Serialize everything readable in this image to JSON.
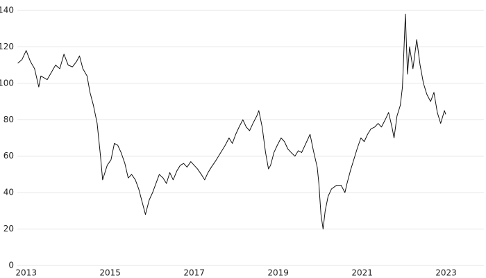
{
  "chart_data": {
    "type": "line",
    "x": [
      2012.8,
      2012.9,
      2013.0,
      2013.1,
      2013.2,
      2013.3,
      2013.35,
      2013.5,
      2013.6,
      2013.7,
      2013.8,
      2013.9,
      2014.0,
      2014.1,
      2014.2,
      2014.27,
      2014.35,
      2014.45,
      2014.52,
      2014.6,
      2014.69,
      2014.77,
      2014.82,
      2014.93,
      2015.02,
      2015.1,
      2015.18,
      2015.26,
      2015.35,
      2015.43,
      2015.51,
      2015.6,
      2015.68,
      2015.76,
      2015.84,
      2015.93,
      2016.01,
      2016.09,
      2016.17,
      2016.26,
      2016.34,
      2016.42,
      2016.5,
      2016.59,
      2016.67,
      2016.75,
      2016.83,
      2016.92,
      2017.0,
      2017.08,
      2017.17,
      2017.25,
      2017.33,
      2017.41,
      2017.5,
      2017.58,
      2017.66,
      2017.74,
      2017.83,
      2017.91,
      2017.99,
      2018.07,
      2018.16,
      2018.24,
      2018.32,
      2018.4,
      2018.49,
      2018.54,
      2018.62,
      2018.7,
      2018.77,
      2018.82,
      2018.9,
      2018.98,
      2019.07,
      2019.15,
      2019.23,
      2019.31,
      2019.4,
      2019.48,
      2019.56,
      2019.64,
      2019.76,
      2019.84,
      2019.93,
      2019.97,
      2019.99,
      2020.02,
      2020.07,
      2020.12,
      2020.19,
      2020.27,
      2020.39,
      2020.5,
      2020.59,
      2020.64,
      2020.72,
      2020.8,
      2020.88,
      2020.97,
      2021.05,
      2021.13,
      2021.21,
      2021.3,
      2021.38,
      2021.46,
      2021.55,
      2021.63,
      2021.71,
      2021.76,
      2021.83,
      2021.91,
      2021.96,
      2022.03,
      2022.08,
      2022.13,
      2022.21,
      2022.3,
      2022.38,
      2022.46,
      2022.54,
      2022.63,
      2022.71,
      2022.79,
      2022.87,
      2022.96,
      2022.99
    ],
    "series": [
      {
        "color": "#111111",
        "values": [
          111,
          113,
          118,
          112,
          108,
          98,
          104,
          102,
          106,
          110,
          108,
          116,
          110,
          109,
          112,
          115,
          108,
          104,
          95,
          88,
          78,
          60,
          47,
          55,
          58,
          67,
          66,
          62,
          56,
          48,
          50,
          47,
          42,
          35,
          28,
          36,
          40,
          45,
          50,
          48,
          45,
          51,
          47,
          52,
          55,
          56,
          54,
          57,
          55,
          53,
          50,
          47,
          51,
          54,
          57,
          60,
          63,
          66,
          70,
          67,
          72,
          76,
          80,
          76,
          74,
          78,
          82,
          85,
          76,
          62,
          53,
          55,
          62,
          66,
          70,
          68,
          64,
          62,
          60,
          63,
          62,
          66,
          72,
          63,
          54,
          45,
          38,
          28,
          20,
          30,
          38,
          42,
          44,
          44,
          40,
          45,
          52,
          58,
          64,
          70,
          68,
          72,
          75,
          76,
          78,
          76,
          80,
          84,
          76,
          70,
          82,
          88,
          98,
          138,
          105,
          120,
          108,
          124,
          110,
          100,
          94,
          90,
          95,
          84,
          78,
          85,
          83
        ]
      }
    ],
    "xlim": [
      2012.79,
      2023.9
    ],
    "xticks": [
      2013,
      2015,
      2017,
      2019,
      2021,
      2023
    ],
    "ylim": [
      0,
      140
    ],
    "yticks": [
      0,
      20,
      40,
      60,
      80,
      100,
      120,
      140
    ],
    "grid": true
  }
}
